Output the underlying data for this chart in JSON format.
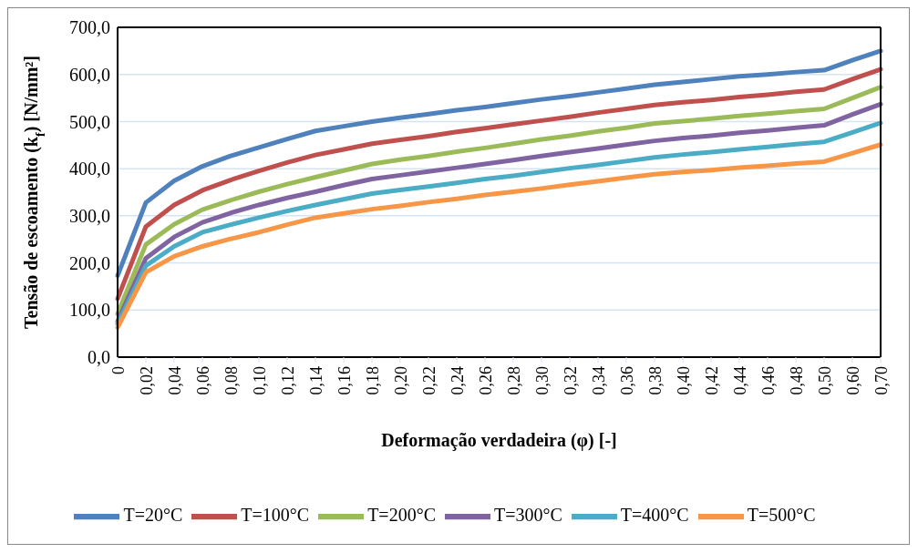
{
  "chart_data": {
    "type": "line",
    "xlabel": "Deformação verdadeira (φ) [-]",
    "ylabel": "Tensão de escoamento (k$_{f}$) [N/mm²]",
    "categories": [
      "0",
      "0,02",
      "0,04",
      "0,06",
      "0,08",
      "0,10",
      "0,12",
      "0,14",
      "0,16",
      "0,18",
      "0,20",
      "0,22",
      "0,24",
      "0,26",
      "0,28",
      "0,30",
      "0,32",
      "0,34",
      "0,36",
      "0,38",
      "0,40",
      "0,42",
      "0,44",
      "0,46",
      "0,48",
      "0,50",
      "0,60",
      "0,70"
    ],
    "series": [
      {
        "name": "T=20°C",
        "color": "#4f81bd",
        "values": [
          173,
          328,
          374,
          405,
          427,
          445,
          463,
          480,
          490,
          500,
          508,
          516,
          524,
          531,
          539,
          547,
          554,
          562,
          570,
          578,
          584,
          590,
          596,
          600,
          605,
          609,
          630,
          650
        ]
      },
      {
        "name": "T=100°C",
        "color": "#c0504d",
        "values": [
          124,
          277,
          323,
          354,
          376,
          395,
          413,
          429,
          441,
          453,
          461,
          469,
          478,
          486,
          494,
          502,
          510,
          519,
          527,
          535,
          541,
          546,
          552,
          557,
          563,
          568,
          590,
          611
        ]
      },
      {
        "name": "T=200°C",
        "color": "#9bbb59",
        "values": [
          92,
          239,
          282,
          313,
          333,
          351,
          367,
          382,
          396,
          410,
          419,
          427,
          436,
          444,
          453,
          462,
          470,
          479,
          487,
          496,
          501,
          506,
          512,
          517,
          522,
          527,
          550,
          573
        ]
      },
      {
        "name": "T=300°C",
        "color": "#8064a2",
        "values": [
          76,
          210,
          255,
          286,
          306,
          323,
          338,
          351,
          365,
          378,
          386,
          394,
          402,
          410,
          418,
          427,
          435,
          443,
          451,
          459,
          465,
          470,
          476,
          481,
          487,
          492,
          515,
          537
        ]
      },
      {
        "name": "T=400°C",
        "color": "#4bacc6",
        "values": [
          71,
          194,
          235,
          265,
          281,
          296,
          310,
          323,
          335,
          347,
          355,
          362,
          370,
          378,
          385,
          393,
          401,
          408,
          416,
          424,
          430,
          435,
          441,
          446,
          452,
          457,
          477,
          497
        ]
      },
      {
        "name": "T=500°C",
        "color": "#f79646",
        "values": [
          63,
          180,
          214,
          235,
          251,
          265,
          281,
          296,
          305,
          314,
          321,
          329,
          336,
          344,
          351,
          358,
          366,
          373,
          381,
          388,
          393,
          397,
          402,
          406,
          411,
          415,
          433,
          451
        ]
      }
    ],
    "ylim": [
      0,
      700
    ],
    "yticks": [
      {
        "value": 0,
        "label": "0,0"
      },
      {
        "value": 100,
        "label": "100,0"
      },
      {
        "value": 200,
        "label": "200,0"
      },
      {
        "value": 300,
        "label": "300,0"
      },
      {
        "value": 400,
        "label": "400,0"
      },
      {
        "value": 500,
        "label": "500,0"
      },
      {
        "value": 600,
        "label": "600,0"
      },
      {
        "value": 700,
        "label": "700,0"
      }
    ],
    "grid": "y",
    "legend": "bottom",
    "marker": "none",
    "line_style": "solid"
  }
}
